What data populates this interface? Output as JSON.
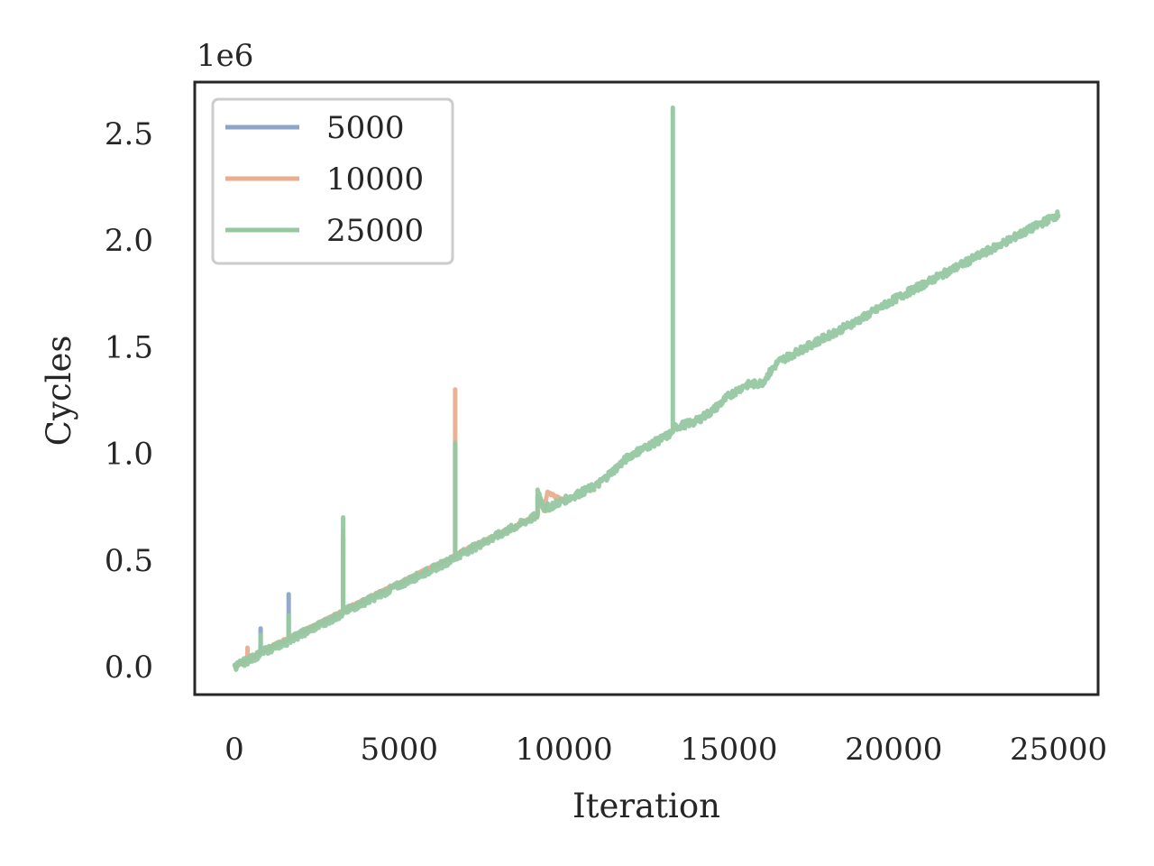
{
  "chart_data": {
    "type": "line",
    "title": "",
    "xlabel": "Iteration",
    "ylabel": "Cycles",
    "y_offset_text": "1e6",
    "xlim": [
      -1200,
      26200
    ],
    "ylim": [
      -0.13,
      2.74
    ],
    "x_ticks": [
      0,
      5000,
      10000,
      15000,
      20000,
      25000
    ],
    "x_tick_labels": [
      "0",
      "5000",
      "10000",
      "15000",
      "20000",
      "25000"
    ],
    "y_ticks": [
      0.0,
      0.5,
      1.0,
      1.5,
      2.0,
      2.5
    ],
    "y_tick_labels": [
      "0.0",
      "0.5",
      "1.0",
      "1.5",
      "2.0",
      "2.5"
    ],
    "grid": false,
    "legend_position": "upper-left",
    "series": [
      {
        "name": "5000",
        "color": "#8da5c9",
        "noise": 0.004,
        "points": [
          [
            0,
            0.0
          ],
          [
            800,
            0.065
          ],
          [
            800,
            0.18
          ],
          [
            800,
            0.07
          ],
          [
            1650,
            0.13
          ],
          [
            1650,
            0.34
          ],
          [
            1650,
            0.135
          ],
          [
            3300,
            0.26
          ],
          [
            3300,
            0.6
          ],
          [
            3300,
            0.265
          ],
          [
            5000,
            0.39
          ]
        ]
      },
      {
        "name": "10000",
        "color": "#e9ae8f",
        "noise": 0.006,
        "points": [
          [
            0,
            0.0
          ],
          [
            400,
            0.035
          ],
          [
            400,
            0.09
          ],
          [
            400,
            0.04
          ],
          [
            3300,
            0.26
          ],
          [
            3300,
            0.64
          ],
          [
            3300,
            0.265
          ],
          [
            6700,
            0.52
          ],
          [
            6700,
            1.3
          ],
          [
            6700,
            0.525
          ],
          [
            9200,
            0.71
          ],
          [
            9200,
            0.8
          ],
          [
            9400,
            0.73
          ],
          [
            9500,
            0.82
          ],
          [
            9700,
            0.8
          ],
          [
            10000,
            0.78
          ]
        ]
      },
      {
        "name": "25000",
        "color": "#96c8a1",
        "noise": 0.018,
        "points": [
          [
            0,
            0.0
          ],
          [
            800,
            0.06
          ],
          [
            800,
            0.15
          ],
          [
            800,
            0.065
          ],
          [
            1650,
            0.12
          ],
          [
            1650,
            0.24
          ],
          [
            1650,
            0.125
          ],
          [
            3300,
            0.25
          ],
          [
            3300,
            0.7
          ],
          [
            3300,
            0.255
          ],
          [
            6700,
            0.51
          ],
          [
            6700,
            1.05
          ],
          [
            6700,
            0.515
          ],
          [
            9200,
            0.71
          ],
          [
            9200,
            0.83
          ],
          [
            9400,
            0.74
          ],
          [
            10000,
            0.78
          ],
          [
            11000,
            0.85
          ],
          [
            11500,
            0.92
          ],
          [
            12000,
            0.99
          ],
          [
            12500,
            1.03
          ],
          [
            13100,
            1.08
          ],
          [
            13300,
            1.1
          ],
          [
            13300,
            2.62
          ],
          [
            13300,
            1.12
          ],
          [
            14000,
            1.15
          ],
          [
            14500,
            1.2
          ],
          [
            15000,
            1.27
          ],
          [
            15500,
            1.32
          ],
          [
            16000,
            1.33
          ],
          [
            16500,
            1.43
          ],
          [
            17000,
            1.47
          ],
          [
            18000,
            1.55
          ],
          [
            19000,
            1.63
          ],
          [
            20000,
            1.72
          ],
          [
            21000,
            1.8
          ],
          [
            22000,
            1.88
          ],
          [
            23000,
            1.96
          ],
          [
            24000,
            2.04
          ],
          [
            25000,
            2.12
          ]
        ]
      }
    ]
  }
}
